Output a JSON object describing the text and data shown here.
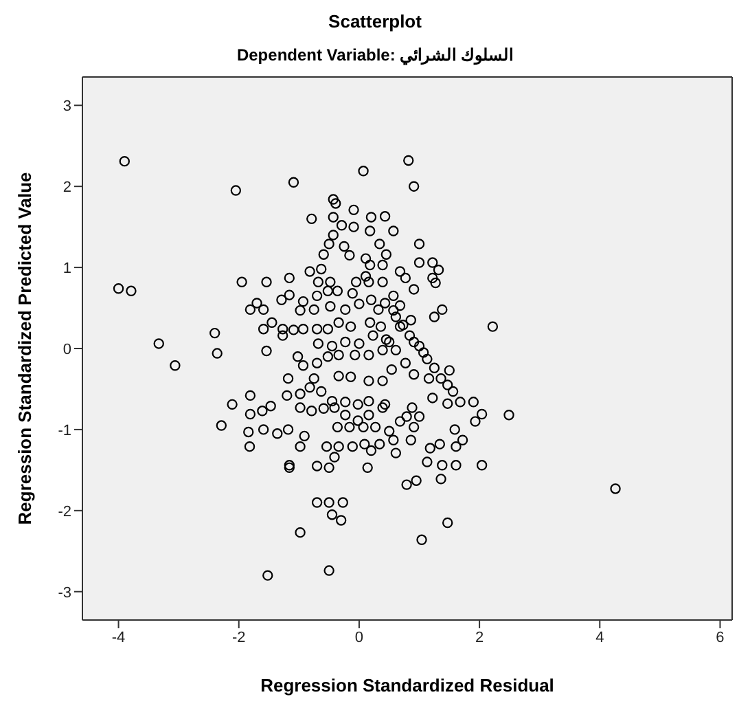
{
  "chart_data": {
    "type": "scatter",
    "title": "Scatterplot",
    "subtitle": "Dependent Variable: السلوك الشرائي",
    "xlabel": "Regression Standardized Residual",
    "ylabel": "Regression Standardized Predicted Value",
    "xlim": [
      -4.6,
      6.2
    ],
    "ylim": [
      -3.35,
      3.35
    ],
    "xticks": [
      -4,
      -2,
      0,
      2,
      4,
      6
    ],
    "yticks": [
      -3,
      -2,
      -1,
      0,
      1,
      2,
      3
    ],
    "grid": false,
    "marker": "circle",
    "series": [
      {
        "color": "#000000",
        "x": [
          -3.9,
          -4.0,
          -3.79,
          -2.05,
          -1.09,
          0.07,
          0.82,
          0.91,
          -3.33,
          -3.06,
          -2.4,
          -2.36,
          -2.11,
          -2.29,
          -1.84,
          -1.82,
          -1.16,
          -0.7,
          -0.7,
          -0.5,
          -0.27,
          -0.45,
          -0.3,
          -0.98,
          -1.52,
          -0.5,
          2.22,
          2.49,
          4.26,
          1.47,
          1.04,
          -0.43,
          -0.39,
          -0.09,
          -0.79,
          -0.43,
          0.2,
          0.43,
          -0.29,
          -0.09,
          0.18,
          0.57,
          -0.43,
          -0.5,
          -0.25,
          0.34,
          -0.59,
          -0.16,
          0.45,
          -0.63,
          0.11,
          0.18,
          0.39,
          -0.82,
          0.11,
          0.16,
          -1.95,
          -1.54,
          -1.16,
          -0.68,
          -0.48,
          -0.05,
          0.39,
          -1.7,
          -1.81,
          -1.59,
          -1.29,
          -1.16,
          -0.93,
          -0.7,
          -0.52,
          -0.36,
          -0.11,
          0.0,
          0.2,
          0.43,
          -0.98,
          -0.75,
          -0.48,
          -0.23,
          0.32,
          0.57,
          -1.59,
          -1.45,
          -1.27,
          -1.09,
          -0.93,
          -0.7,
          -0.52,
          -0.34,
          -0.14,
          0.18,
          0.36,
          1.0,
          1.0,
          1.22,
          1.32,
          1.22,
          1.27,
          0.68,
          0.77,
          0.91,
          0.57,
          0.68,
          1.38,
          1.25,
          0.86,
          0.73,
          0.61,
          -1.54,
          -1.81,
          -1.81,
          -1.61,
          -1.47,
          -1.59,
          -1.36,
          -1.18,
          -0.91,
          -0.98,
          -1.16,
          -0.5,
          0.14,
          -0.54,
          -0.34,
          -0.11,
          0.09,
          0.2,
          0.34,
          0.57,
          -0.41,
          -0.36,
          -0.16,
          0.07,
          0.27,
          0.5,
          -0.98,
          -0.79,
          -0.59,
          -0.41,
          -0.23,
          -0.02,
          0.16,
          0.39,
          -1.2,
          -0.98,
          -0.82,
          -0.63,
          -0.45,
          -0.23,
          -0.02,
          0.16,
          0.43,
          -1.18,
          -0.75,
          -0.34,
          -0.14,
          0.16,
          0.39,
          -1.02,
          -0.93,
          -0.7,
          -0.52,
          -0.34,
          -0.07,
          0.16,
          0.39,
          0.54,
          -1.27,
          -0.68,
          -0.45,
          -0.23,
          0.0,
          0.23,
          0.5,
          0.68,
          0.84,
          0.91,
          1.0,
          1.07,
          1.13,
          0.45,
          0.61,
          0.77,
          1.25,
          1.5,
          1.36,
          1.16,
          0.91,
          1.47,
          1.56,
          1.22,
          1.47,
          1.68,
          1.9,
          2.04,
          1.93,
          0.88,
          1.0,
          0.91,
          0.68,
          0.79,
          1.59,
          1.72,
          1.61,
          1.34,
          1.18,
          0.86,
          0.61,
          1.13,
          1.38,
          1.61,
          2.04,
          0.95,
          0.79,
          1.36
        ],
        "values": [
          2.31,
          0.74,
          0.71,
          1.95,
          2.05,
          2.19,
          2.32,
          2.0,
          0.06,
          -0.21,
          0.19,
          -0.06,
          -0.69,
          -0.95,
          -1.03,
          -1.21,
          -1.44,
          -1.45,
          -1.9,
          -1.9,
          -1.9,
          -2.05,
          -2.12,
          -2.27,
          -2.8,
          -2.74,
          0.27,
          -0.82,
          -1.73,
          -2.15,
          -2.36,
          1.84,
          1.79,
          1.71,
          1.6,
          1.62,
          1.62,
          1.63,
          1.52,
          1.5,
          1.45,
          1.45,
          1.4,
          1.29,
          1.26,
          1.29,
          1.16,
          1.15,
          1.16,
          0.98,
          1.11,
          1.03,
          1.03,
          0.95,
          0.89,
          0.82,
          0.82,
          0.82,
          0.87,
          0.82,
          0.82,
          0.82,
          0.82,
          0.56,
          0.48,
          0.48,
          0.6,
          0.66,
          0.58,
          0.65,
          0.71,
          0.71,
          0.68,
          0.55,
          0.6,
          0.56,
          0.47,
          0.48,
          0.52,
          0.48,
          0.48,
          0.47,
          0.24,
          0.32,
          0.24,
          0.23,
          0.24,
          0.24,
          0.24,
          0.32,
          0.27,
          0.32,
          0.27,
          1.29,
          1.06,
          1.06,
          0.97,
          0.87,
          0.81,
          0.95,
          0.87,
          0.73,
          0.65,
          0.53,
          0.48,
          0.39,
          0.35,
          0.29,
          0.39,
          -0.03,
          -0.58,
          -0.81,
          -0.77,
          -0.71,
          -1.0,
          -1.05,
          -1.0,
          -1.08,
          -1.21,
          -1.47,
          -1.47,
          -1.47,
          -1.21,
          -1.21,
          -1.21,
          -1.18,
          -1.26,
          -1.18,
          -1.13,
          -1.34,
          -0.97,
          -0.97,
          -0.97,
          -0.97,
          -1.02,
          -0.73,
          -0.77,
          -0.74,
          -0.73,
          -0.82,
          -0.89,
          -0.82,
          -0.73,
          -0.58,
          -0.56,
          -0.48,
          -0.53,
          -0.65,
          -0.66,
          -0.69,
          -0.65,
          -0.69,
          -0.37,
          -0.37,
          -0.34,
          -0.35,
          -0.4,
          -0.4,
          -0.1,
          -0.21,
          -0.18,
          -0.1,
          -0.08,
          -0.08,
          -0.08,
          -0.02,
          -0.26,
          0.16,
          0.06,
          0.03,
          0.08,
          0.06,
          0.16,
          0.08,
          0.27,
          0.16,
          0.08,
          0.03,
          -0.05,
          -0.13,
          0.11,
          -0.02,
          -0.18,
          -0.24,
          -0.27,
          -0.37,
          -0.37,
          -0.32,
          -0.45,
          -0.53,
          -0.61,
          -0.68,
          -0.66,
          -0.66,
          -0.81,
          -0.9,
          -0.73,
          -0.84,
          -0.97,
          -0.9,
          -0.84,
          -1.0,
          -1.13,
          -1.21,
          -1.18,
          -1.23,
          -1.13,
          -1.29,
          -1.4,
          -1.44,
          -1.44,
          -1.44,
          -1.63,
          -1.68,
          -1.61
        ]
      }
    ]
  }
}
